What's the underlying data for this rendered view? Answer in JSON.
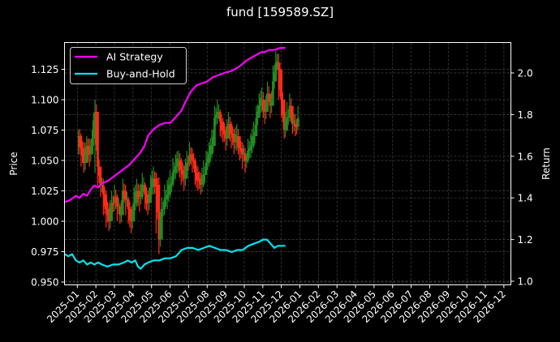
{
  "title": "fund [159589.SZ]",
  "chart_data": {
    "type": "line",
    "title": "fund [159589.SZ]",
    "xlabel": "",
    "ylabel": "Price",
    "ylabel_right": "Return",
    "ylim": [
      0.947,
      1.145
    ],
    "ylim_right": [
      0.98,
      2.14
    ],
    "yticks": [
      "0.950",
      "0.975",
      "1.000",
      "1.025",
      "1.050",
      "1.075",
      "1.100",
      "1.125"
    ],
    "yticks_right": [
      "1.0",
      "1.2",
      "1.4",
      "1.6",
      "1.8",
      "2.0"
    ],
    "xticks": [
      "2025-01",
      "2025-02",
      "2025-03",
      "2025-04",
      "2025-05",
      "2025-06",
      "2025-07",
      "2025-08",
      "2025-09",
      "2025-10",
      "2025-11",
      "2025-12",
      "2026-01",
      "2026-02",
      "2026-03",
      "2026-04",
      "2026-05",
      "2026-06",
      "2026-07",
      "2026-08",
      "2026-09",
      "2026-10",
      "2026-11",
      "2026-12"
    ],
    "grid": true,
    "legend_position": "upper left",
    "legend": [
      "AI Strategy",
      "Buy-and-Hold"
    ],
    "series": [
      {
        "name": "Price (candlestick)",
        "axis": "left",
        "style": "candlestick",
        "x_month": [
          0.05,
          0.2,
          0.35,
          0.5,
          0.65,
          0.8,
          0.95,
          1.1,
          1.25,
          1.4,
          1.55,
          1.7,
          1.85,
          2.0,
          2.15,
          2.3,
          2.45,
          2.6,
          2.75,
          2.9,
          3.05,
          3.2,
          3.35,
          3.5,
          3.65,
          3.8,
          3.95,
          4.1,
          4.25,
          4.4,
          4.55,
          4.7,
          4.85,
          5.0,
          5.15,
          5.3,
          5.45,
          5.6,
          5.75,
          5.9,
          6.05,
          6.2,
          6.35,
          6.5,
          6.65,
          6.8,
          6.95,
          7.1,
          7.25,
          7.4,
          7.55,
          7.7,
          7.85,
          8.0,
          8.15,
          8.3,
          8.45,
          8.6,
          8.75,
          8.9,
          9.05,
          9.2,
          9.35,
          9.5,
          9.65,
          9.8,
          9.95,
          10.1,
          10.25,
          10.4,
          10.55,
          10.7,
          10.85,
          11.0,
          11.15,
          11.3,
          11.45,
          11.6,
          11.75,
          11.9
        ],
        "close": [
          1.07,
          1.06,
          1.048,
          1.062,
          1.055,
          1.068,
          1.09,
          1.045,
          1.03,
          1.022,
          1.01,
          1.0,
          1.015,
          1.02,
          1.012,
          1.005,
          1.025,
          1.018,
          1.01,
          1.0,
          1.015,
          1.025,
          1.02,
          1.03,
          1.022,
          1.015,
          1.028,
          1.035,
          1.03,
          0.985,
          1.01,
          1.018,
          1.022,
          1.03,
          1.04,
          1.045,
          1.05,
          1.042,
          1.035,
          1.048,
          1.055,
          1.05,
          1.04,
          1.035,
          1.03,
          1.038,
          1.048,
          1.055,
          1.062,
          1.085,
          1.09,
          1.082,
          1.075,
          1.068,
          1.08,
          1.072,
          1.065,
          1.07,
          1.06,
          1.055,
          1.05,
          1.058,
          1.062,
          1.07,
          1.085,
          1.095,
          1.1,
          1.09,
          1.105,
          1.095,
          1.115,
          1.13,
          1.125,
          1.1,
          1.075,
          1.085,
          1.095,
          1.08,
          1.078,
          1.085
        ],
        "high": [
          1.075,
          1.072,
          1.065,
          1.07,
          1.068,
          1.075,
          1.1,
          1.065,
          1.045,
          1.035,
          1.025,
          1.015,
          1.025,
          1.03,
          1.022,
          1.015,
          1.035,
          1.03,
          1.02,
          1.012,
          1.028,
          1.035,
          1.03,
          1.04,
          1.032,
          1.025,
          1.038,
          1.045,
          1.04,
          1.036,
          1.02,
          1.03,
          1.034,
          1.042,
          1.052,
          1.055,
          1.058,
          1.052,
          1.046,
          1.058,
          1.065,
          1.06,
          1.052,
          1.045,
          1.04,
          1.05,
          1.058,
          1.065,
          1.075,
          1.095,
          1.1,
          1.092,
          1.085,
          1.078,
          1.09,
          1.082,
          1.076,
          1.08,
          1.07,
          1.065,
          1.06,
          1.068,
          1.072,
          1.082,
          1.095,
          1.105,
          1.11,
          1.1,
          1.115,
          1.105,
          1.128,
          1.14,
          1.138,
          1.125,
          1.09,
          1.098,
          1.105,
          1.092,
          1.088,
          1.095
        ],
        "low": [
          1.055,
          1.045,
          1.04,
          1.05,
          1.045,
          1.055,
          1.04,
          1.028,
          1.02,
          1.005,
          0.995,
          0.992,
          1.002,
          1.008,
          1.0,
          0.998,
          1.01,
          1.005,
          0.998,
          0.99,
          1.005,
          1.012,
          1.008,
          1.018,
          1.01,
          1.005,
          1.015,
          1.022,
          0.99,
          0.973,
          0.995,
          1.005,
          1.01,
          1.02,
          1.028,
          1.035,
          1.04,
          1.03,
          1.025,
          1.035,
          1.045,
          1.04,
          1.03,
          1.025,
          1.022,
          1.028,
          1.038,
          1.045,
          1.052,
          1.07,
          1.08,
          1.07,
          1.065,
          1.058,
          1.068,
          1.06,
          1.055,
          1.058,
          1.05,
          1.043,
          1.04,
          1.048,
          1.052,
          1.06,
          1.075,
          1.085,
          1.09,
          1.08,
          1.092,
          1.085,
          1.1,
          1.118,
          1.1,
          1.085,
          1.068,
          1.074,
          1.082,
          1.072,
          1.07,
          1.075
        ],
        "up_color": "#228b22",
        "down_color": "#ff2a1a"
      },
      {
        "name": "AI Strategy",
        "axis": "right",
        "color": "#ff00ff",
        "x_month": [
          0.0,
          0.3,
          0.6,
          0.8,
          1.0,
          1.2,
          1.4,
          1.6,
          1.8,
          2.0,
          2.3,
          2.6,
          2.9,
          3.2,
          3.5,
          3.7,
          3.9,
          4.1,
          4.3,
          4.5,
          4.8,
          5.1,
          5.4,
          5.7,
          6.0,
          6.3,
          6.5,
          6.8,
          7.1,
          7.4,
          7.7,
          8.0,
          8.3,
          8.6,
          9.0,
          9.4,
          9.8,
          10.2,
          10.4,
          10.6,
          10.8,
          11.0,
          11.3,
          11.6,
          11.9
        ],
        "values": [
          1.38,
          1.39,
          1.41,
          1.4,
          1.42,
          1.41,
          1.44,
          1.46,
          1.45,
          1.47,
          1.48,
          1.5,
          1.52,
          1.54,
          1.56,
          1.58,
          1.6,
          1.62,
          1.65,
          1.7,
          1.73,
          1.75,
          1.76,
          1.76,
          1.79,
          1.82,
          1.86,
          1.91,
          1.94,
          1.95,
          1.96,
          1.98,
          1.99,
          2.0,
          2.01,
          2.03,
          2.06,
          2.08,
          2.09,
          2.1,
          2.1,
          2.11,
          2.11,
          2.12,
          2.12
        ]
      },
      {
        "name": "Buy-and-Hold",
        "axis": "right",
        "color": "#00e5ee",
        "x_month": [
          0.0,
          0.2,
          0.4,
          0.6,
          0.8,
          1.0,
          1.2,
          1.4,
          1.6,
          1.8,
          2.0,
          2.3,
          2.6,
          2.9,
          3.2,
          3.4,
          3.6,
          3.8,
          3.95,
          4.1,
          4.3,
          4.5,
          4.8,
          5.1,
          5.4,
          5.7,
          6.0,
          6.3,
          6.6,
          6.9,
          7.2,
          7.5,
          7.8,
          8.1,
          8.4,
          8.7,
          9.0,
          9.3,
          9.6,
          9.9,
          10.2,
          10.5,
          10.7,
          10.9,
          11.1,
          11.3,
          11.5,
          11.7,
          11.9
        ],
        "values": [
          1.13,
          1.12,
          1.13,
          1.1,
          1.09,
          1.1,
          1.08,
          1.09,
          1.08,
          1.09,
          1.08,
          1.07,
          1.08,
          1.08,
          1.09,
          1.1,
          1.09,
          1.1,
          1.07,
          1.06,
          1.08,
          1.09,
          1.1,
          1.1,
          1.11,
          1.11,
          1.12,
          1.15,
          1.16,
          1.16,
          1.15,
          1.16,
          1.17,
          1.16,
          1.15,
          1.15,
          1.14,
          1.15,
          1.15,
          1.17,
          1.18,
          1.19,
          1.2,
          1.2,
          1.18,
          1.16,
          1.17,
          1.17,
          1.17
        ]
      }
    ]
  }
}
